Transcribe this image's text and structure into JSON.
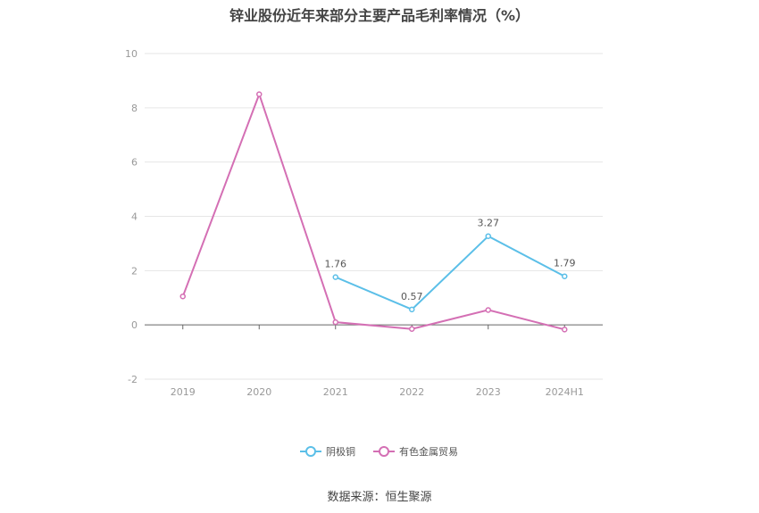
{
  "chart_data": {
    "type": "line",
    "title": "锌业股份近年来部分主要产品毛利率情况（%）",
    "categories": [
      "2019",
      "2020",
      "2021",
      "2022",
      "2023",
      "2024H1"
    ],
    "ylim": [
      -2,
      10
    ],
    "yticks": [
      "-2",
      "0",
      "2",
      "4",
      "6",
      "8",
      "10"
    ],
    "grid": true,
    "legend_position": "bottom-center",
    "series": [
      {
        "name": "阴极铜",
        "color": "#5bbfe8",
        "values": [
          null,
          null,
          1.76,
          0.57,
          3.27,
          1.79
        ],
        "labels": [
          "",
          "",
          "1.76",
          "0.57",
          "3.27",
          "1.79"
        ]
      },
      {
        "name": "有色金属贸易",
        "color": "#d46fb4",
        "values": [
          1.05,
          8.5,
          0.1,
          -0.15,
          0.55,
          -0.17
        ],
        "labels": [
          "",
          "",
          "",
          "",
          "",
          ""
        ]
      }
    ]
  },
  "source_text": "数据来源：恒生聚源"
}
